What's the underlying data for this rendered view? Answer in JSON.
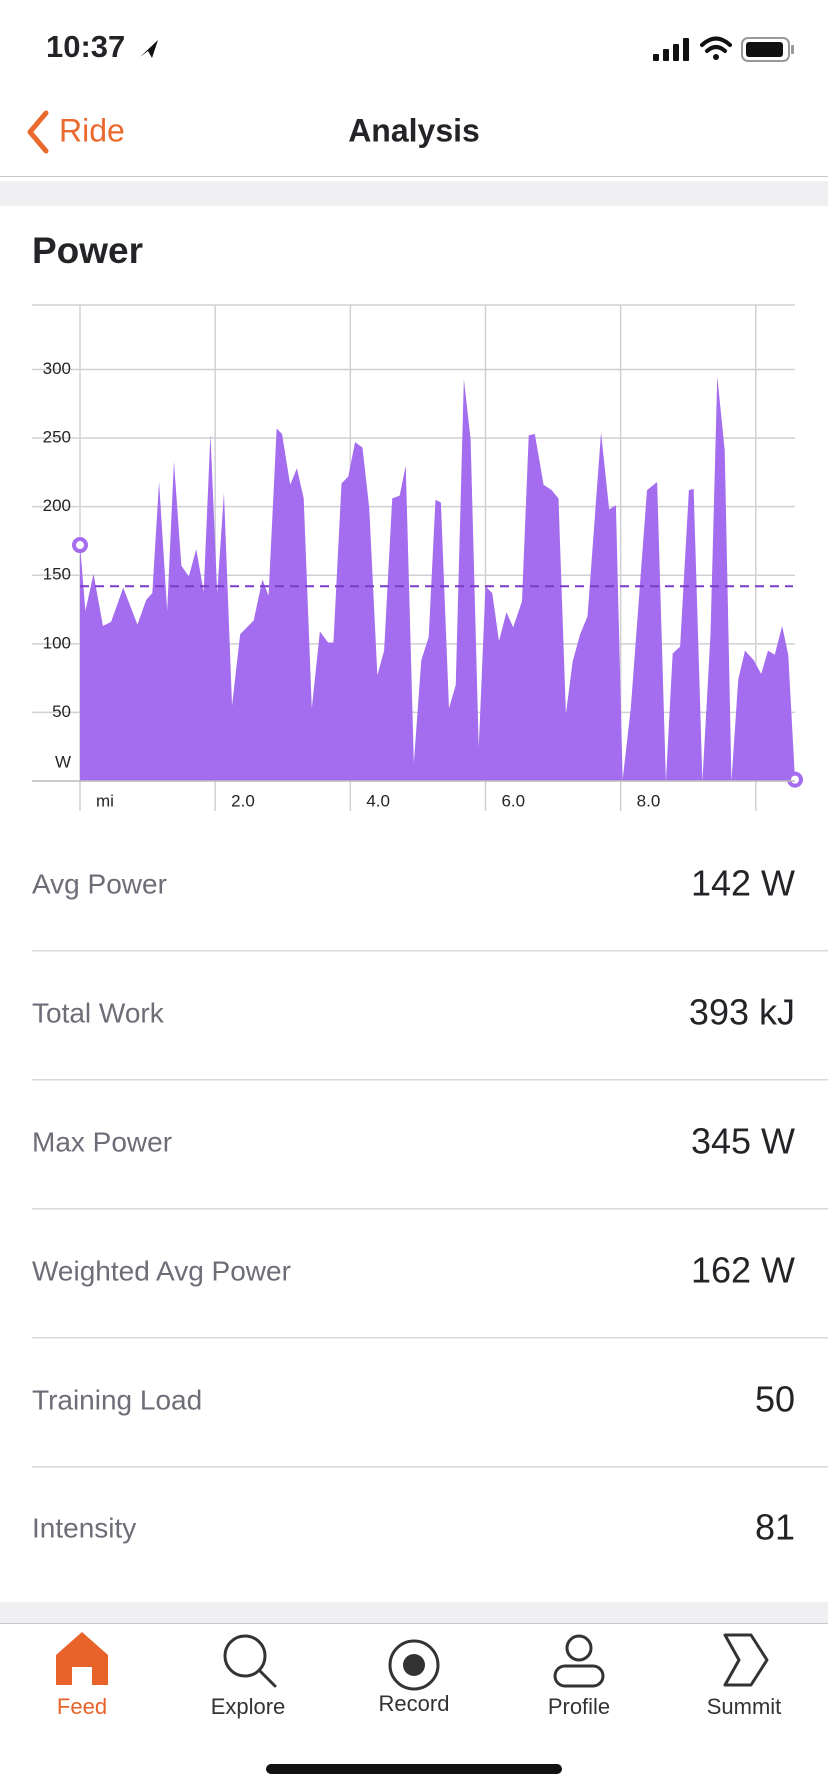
{
  "status_bar": {
    "time": "10:37"
  },
  "nav": {
    "back": "Ride",
    "title": "Analysis"
  },
  "card": {
    "title": "Power"
  },
  "chart_data": {
    "type": "area",
    "x": [
      0,
      0.08,
      0.2,
      0.34,
      0.46,
      0.64,
      0.85,
      0.98,
      1.07,
      1.17,
      1.29,
      1.39,
      1.5,
      1.61,
      1.72,
      1.83,
      1.93,
      2.03,
      2.13,
      2.25,
      2.37,
      2.57,
      2.7,
      2.79,
      2.91,
      2.99,
      3.11,
      3.21,
      3.31,
      3.43,
      3.55,
      3.67,
      3.75,
      3.87,
      3.97,
      4.07,
      4.18,
      4.28,
      4.4,
      4.5,
      4.62,
      4.73,
      4.82,
      4.94,
      5.05,
      5.16,
      5.26,
      5.34,
      5.46,
      5.56,
      5.68,
      5.78,
      5.9,
      6.0,
      6.1,
      6.2,
      6.31,
      6.41,
      6.54,
      6.64,
      6.73,
      6.86,
      6.98,
      7.08,
      7.19,
      7.29,
      7.4,
      7.51,
      7.71,
      7.83,
      7.93,
      8.03,
      8.15,
      8.39,
      8.54,
      8.67,
      8.77,
      8.88,
      9.01,
      9.08,
      9.21,
      9.33,
      9.43,
      9.54,
      9.64,
      9.74,
      9.84,
      9.97,
      10.08,
      10.18,
      10.28,
      10.39,
      10.48,
      10.58
    ],
    "values": [
      172,
      124,
      151,
      113,
      116,
      141,
      114,
      132,
      137,
      218,
      124,
      233,
      157,
      149,
      169,
      138,
      253,
      137,
      210,
      55,
      107,
      117,
      147,
      135,
      257,
      253,
      216,
      228,
      206,
      53,
      109,
      101,
      101,
      217,
      222,
      247,
      243,
      199,
      77,
      95,
      206,
      208,
      230,
      13,
      88,
      105,
      205,
      203,
      53,
      70,
      293,
      249,
      24,
      142,
      137,
      102,
      123,
      112,
      131,
      252,
      253,
      216,
      212,
      206,
      49,
      87,
      107,
      120,
      254,
      198,
      201,
      1,
      53,
      212,
      218,
      0,
      93,
      98,
      212,
      213,
      0,
      107,
      295,
      241,
      0,
      74,
      95,
      88,
      78,
      95,
      92,
      113,
      92,
      1
    ],
    "color": "#a46cee",
    "xlim": [
      0,
      10.58
    ],
    "ylim": [
      0,
      347
    ],
    "xticks": [
      {
        "value": 0,
        "label": "mi"
      },
      {
        "value": 2,
        "label": "2.0"
      },
      {
        "value": 4,
        "label": "4.0"
      },
      {
        "value": 6,
        "label": "6.0"
      },
      {
        "value": 8,
        "label": "8.0"
      },
      {
        "value": 10,
        "label": null
      }
    ],
    "yticks": [
      50,
      100,
      150,
      200,
      250,
      300
    ],
    "y_label": "W",
    "average": 142,
    "average_color": "#7a3cc6",
    "grid": true
  },
  "stats": [
    {
      "label": "Avg Power",
      "value": "142 W"
    },
    {
      "label": "Total Work",
      "value": "393 kJ"
    },
    {
      "label": "Max Power",
      "value": "345 W"
    },
    {
      "label": "Weighted Avg Power",
      "value": "162 W"
    },
    {
      "label": "Training Load",
      "value": "50"
    },
    {
      "label": "Intensity",
      "value": "81"
    }
  ],
  "tabs": [
    {
      "label": "Feed",
      "active": true
    },
    {
      "label": "Explore",
      "active": false
    },
    {
      "label": "Record",
      "active": false
    },
    {
      "label": "Profile",
      "active": false
    },
    {
      "label": "Summit",
      "active": false
    }
  ]
}
